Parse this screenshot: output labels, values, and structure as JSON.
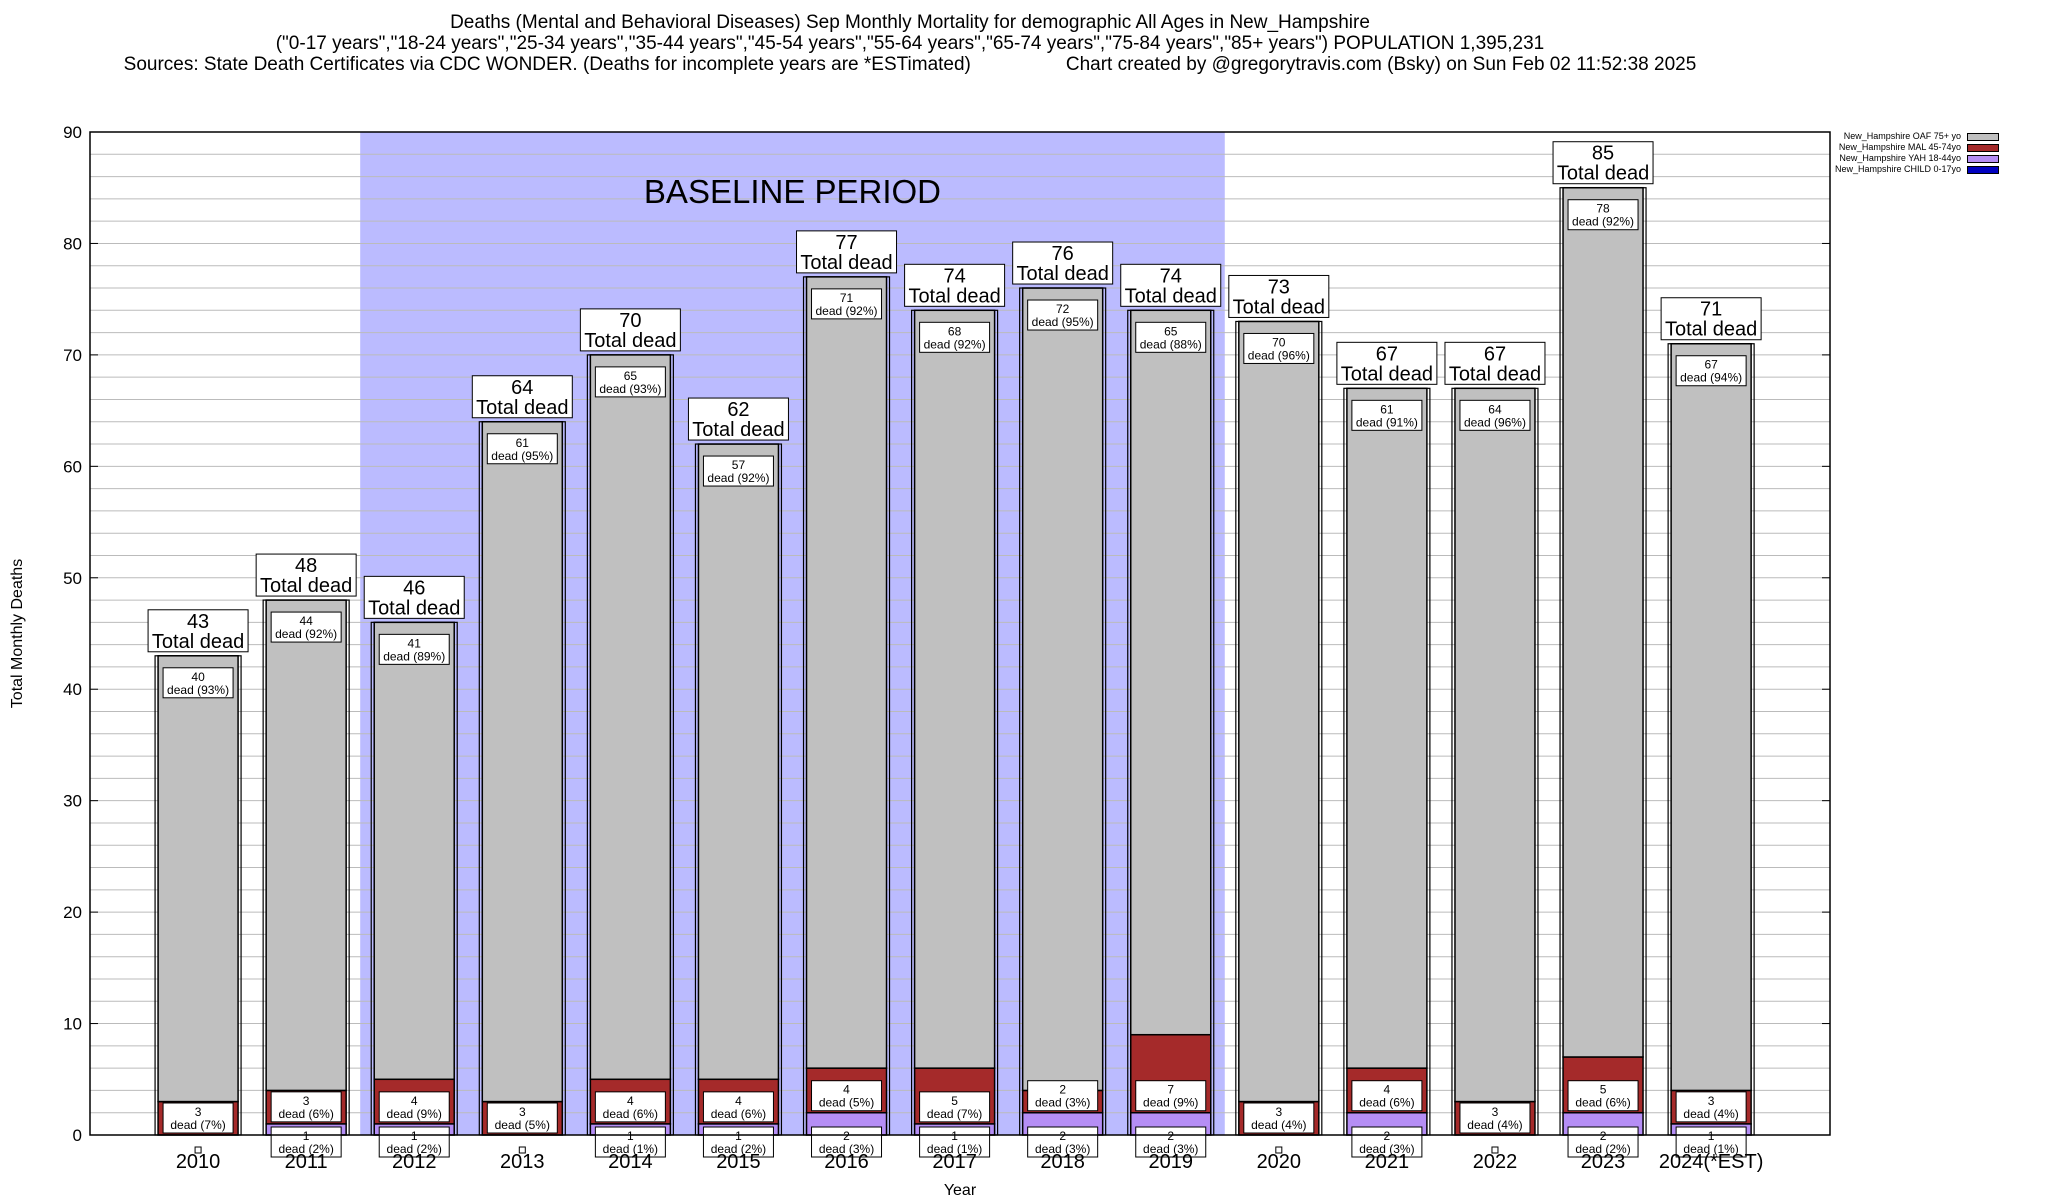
{
  "header": {
    "line1": "Deaths (Mental and Behavioral Diseases) Sep Monthly Mortality for demographic All Ages in New_Hampshire",
    "line2": "(\"0-17 years\",\"18-24 years\",\"25-34 years\",\"35-44 years\",\"45-54 years\",\"55-64 years\",\"65-74 years\",\"75-84 years\",\"85+ years\") POPULATION 1,395,231",
    "line3_left": "Sources: State Death Certificates via CDC WONDER. (Deaths for incomplete years are *ESTimated)",
    "line3_right": "Chart created by @gregorytravis.com (Bsky) on Sun Feb 02 11:52:38 2025"
  },
  "chart_data": {
    "type": "bar",
    "stacked": true,
    "categories": [
      "2010",
      "2011",
      "2012",
      "2013",
      "2014",
      "2015",
      "2016",
      "2017",
      "2018",
      "2019",
      "2020",
      "2021",
      "2022",
      "2023",
      "2024(*EST)"
    ],
    "series": [
      {
        "name": "New_Hampshire CHILD 0-17yo",
        "color": "#0000c0",
        "values": [
          0,
          0,
          0,
          0,
          0,
          0,
          0,
          0,
          0,
          0,
          0,
          0,
          0,
          0,
          0
        ],
        "labels": [
          "",
          "",
          "",
          "",
          "",
          "",
          "",
          "",
          "",
          "",
          "",
          "",
          "",
          "",
          ""
        ]
      },
      {
        "name": "New_Hampshire YAH 18-44yo",
        "color": "#b58ef5",
        "values": [
          0,
          1,
          1,
          0,
          1,
          1,
          2,
          1,
          2,
          2,
          0,
          2,
          0,
          2,
          1
        ],
        "labels": [
          "",
          "1\ndead (2%)",
          "1\ndead (2%)",
          "",
          "1\ndead (1%)",
          "1\ndead (2%)",
          "2\ndead (3%)",
          "1\ndead (1%)",
          "2\ndead (3%)",
          "2\ndead (3%)",
          "",
          "2\ndead (3%)",
          "",
          "2\ndead (2%)",
          "1\ndead (1%)"
        ]
      },
      {
        "name": "New_Hampshire MAL 45-74yo",
        "color": "#a52a2a",
        "values": [
          3,
          3,
          4,
          3,
          4,
          4,
          4,
          5,
          2,
          7,
          3,
          4,
          3,
          5,
          3
        ],
        "labels": [
          "3\ndead (7%)",
          "3\ndead (6%)",
          "4\ndead (9%)",
          "3\ndead (5%)",
          "4\ndead (6%)",
          "4\ndead (6%)",
          "4\ndead (5%)",
          "5\ndead (7%)",
          "2\ndead (3%)",
          "7\ndead (9%)",
          "3\ndead (4%)",
          "4\ndead (6%)",
          "3\ndead (4%)",
          "5\ndead (6%)",
          "3\ndead (4%)"
        ]
      },
      {
        "name": "New_Hampshire OAF 75+ yo",
        "color": "#c0c0c0",
        "values": [
          40,
          44,
          41,
          61,
          65,
          57,
          71,
          68,
          72,
          65,
          70,
          61,
          64,
          78,
          67
        ],
        "labels": [
          "40\ndead (93%)",
          "44\ndead (92%)",
          "41\ndead (89%)",
          "61\ndead (95%)",
          "65\ndead (93%)",
          "57\ndead (92%)",
          "71\ndead (92%)",
          "68\ndead (92%)",
          "72\ndead (95%)",
          "65\ndead (88%)",
          "70\ndead (96%)",
          "61\ndead (91%)",
          "64\ndead (96%)",
          "78\ndead (92%)",
          "67\ndead (94%)"
        ]
      }
    ],
    "totals": [
      43,
      48,
      46,
      64,
      70,
      62,
      77,
      74,
      76,
      74,
      73,
      67,
      67,
      85,
      71
    ],
    "total_suffix": "Total dead",
    "xlabel": "Year",
    "ylabel": "Total Monthly Deaths",
    "ylim": [
      0,
      90
    ],
    "yticks": [
      0,
      10,
      20,
      30,
      40,
      50,
      60,
      70,
      80,
      90
    ],
    "minor_tick_step": 2,
    "grid": true,
    "legend_position": "top-right",
    "baseline": {
      "label": "BASELINE PERIOD",
      "from": "2012",
      "to": "2019",
      "color": "#bbbbff"
    }
  }
}
